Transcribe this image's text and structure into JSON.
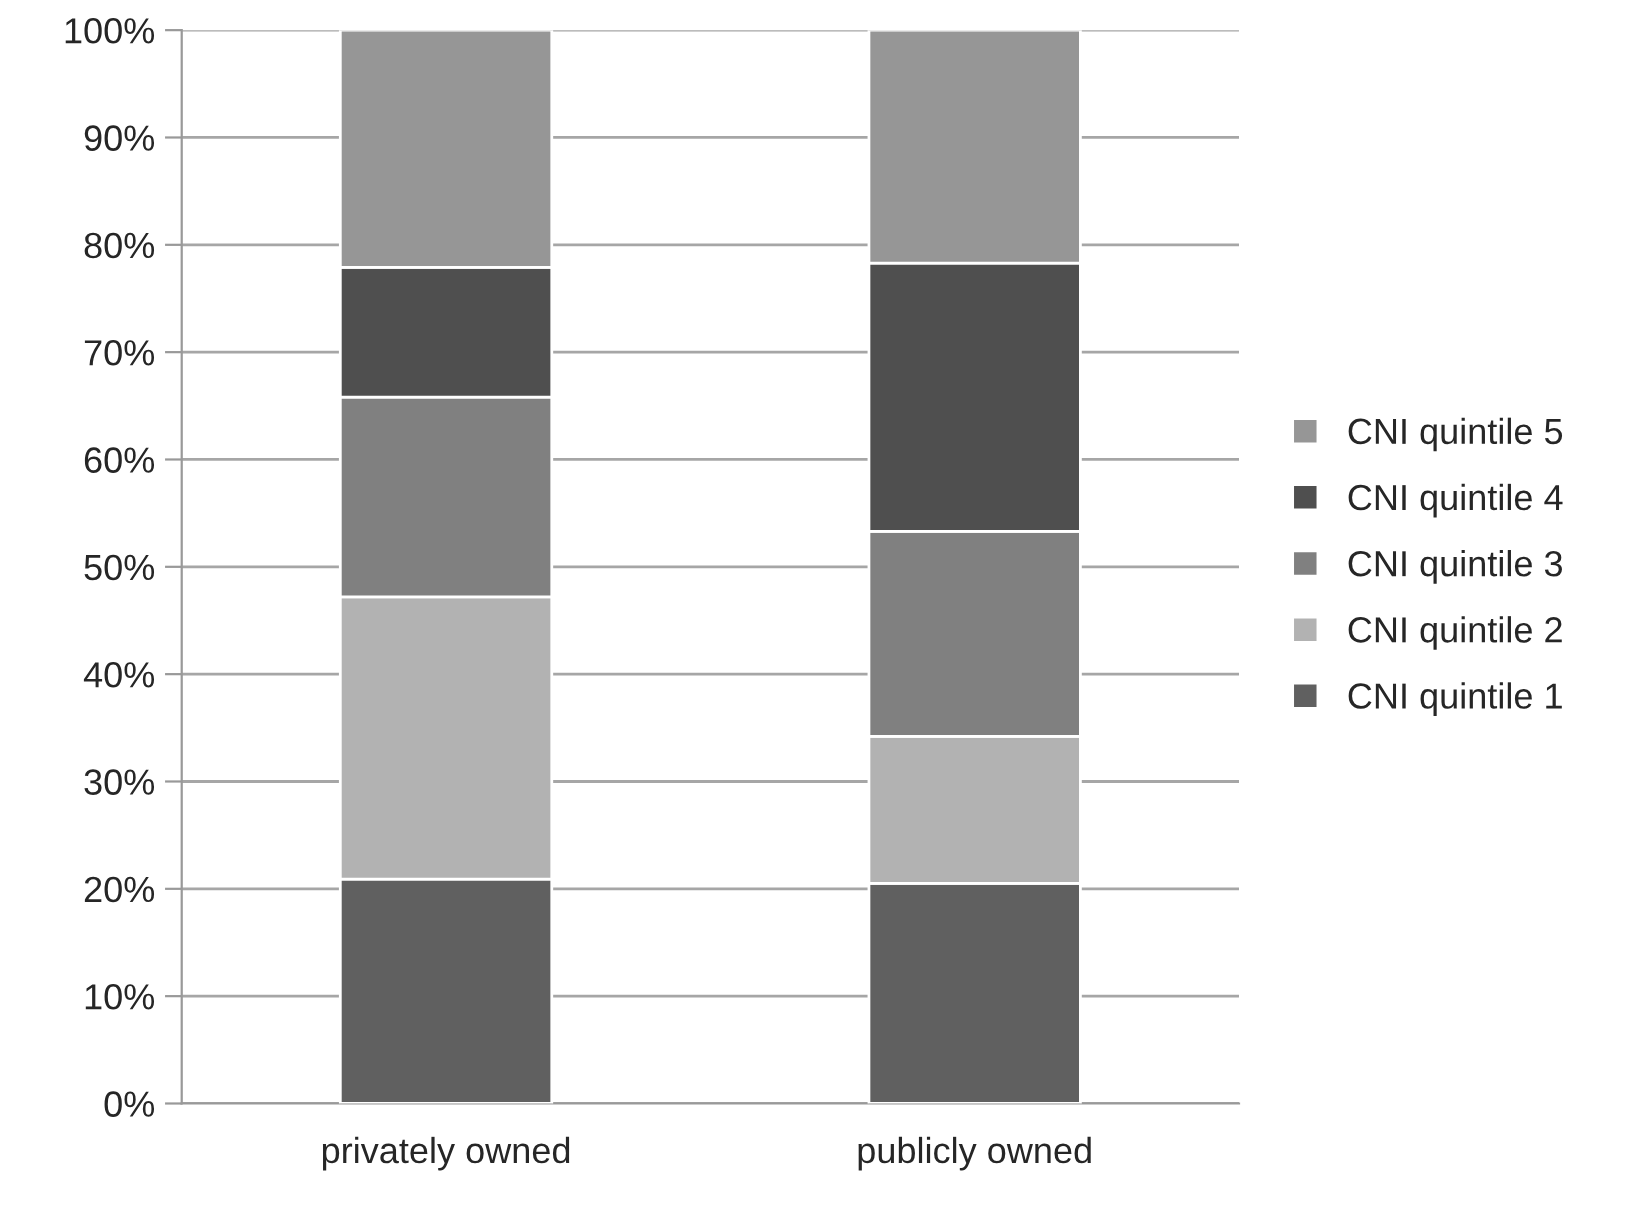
{
  "chart_data": {
    "type": "bar",
    "stacked": true,
    "categories": [
      "privately owned",
      "publicly owned"
    ],
    "series": [
      {
        "name": "CNI quintile 1",
        "color": "#606060",
        "values": [
          20.9,
          20.5
        ]
      },
      {
        "name": "CNI quintile 2",
        "color": "#b2b2b2",
        "values": [
          26.3,
          13.7
        ]
      },
      {
        "name": "CNI quintile 3",
        "color": "#808080",
        "values": [
          18.6,
          19.1
        ]
      },
      {
        "name": "CNI quintile 4",
        "color": "#4f4f4f",
        "values": [
          12.1,
          25.0
        ]
      },
      {
        "name": "CNI quintile 5",
        "color": "#969696",
        "values": [
          22.1,
          21.7
        ]
      }
    ],
    "ylim": [
      0,
      100
    ],
    "yticks": [
      {
        "value": 0,
        "label": "0%"
      },
      {
        "value": 10,
        "label": "10%"
      },
      {
        "value": 20,
        "label": "20%"
      },
      {
        "value": 30,
        "label": "30%"
      },
      {
        "value": 40,
        "label": "40%"
      },
      {
        "value": 50,
        "label": "50%"
      },
      {
        "value": 60,
        "label": "60%"
      },
      {
        "value": 70,
        "label": "70%"
      },
      {
        "value": 80,
        "label": "80%"
      },
      {
        "value": 90,
        "label": "90%"
      },
      {
        "value": 100,
        "label": "100%"
      }
    ],
    "grid": "y",
    "legend": "right"
  }
}
